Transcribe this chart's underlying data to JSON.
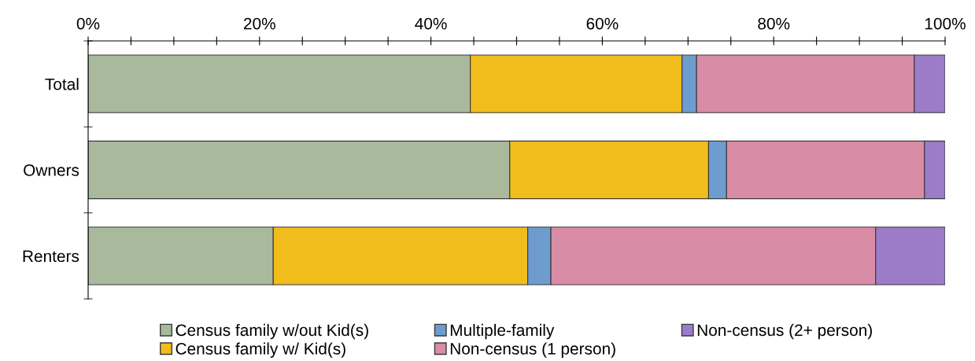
{
  "chart_data": {
    "type": "bar",
    "orientation": "horizontal",
    "stacked": true,
    "categories": [
      "Total",
      "Owners",
      "Renters"
    ],
    "series": [
      {
        "name": "Census family w/out Kid(s)",
        "color": "#a9b99b",
        "values": [
          44.6,
          49.2,
          21.6
        ]
      },
      {
        "name": "Census family w/ Kid(s)",
        "color": "#f0bd1c",
        "values": [
          24.7,
          23.2,
          29.7
        ]
      },
      {
        "name": "Multiple-family",
        "color": "#6f9ccf",
        "values": [
          1.7,
          2.1,
          2.7
        ]
      },
      {
        "name": "Non-census (1 person)",
        "color": "#d98ca6",
        "values": [
          25.4,
          23.1,
          37.9
        ]
      },
      {
        "name": "Non-census (2+ person)",
        "color": "#9c7bc9",
        "values": [
          3.6,
          2.4,
          8.1
        ]
      }
    ],
    "xlim": [
      0,
      100
    ],
    "xticks": [
      {
        "value": 0,
        "label": "0%"
      },
      {
        "value": 5,
        "label": null
      },
      {
        "value": 10,
        "label": null
      },
      {
        "value": 15,
        "label": null
      },
      {
        "value": 20,
        "label": "20%"
      },
      {
        "value": 25,
        "label": null
      },
      {
        "value": 30,
        "label": null
      },
      {
        "value": 35,
        "label": null
      },
      {
        "value": 40,
        "label": "40%"
      },
      {
        "value": 45,
        "label": null
      },
      {
        "value": 50,
        "label": null
      },
      {
        "value": 55,
        "label": null
      },
      {
        "value": 60,
        "label": "60%"
      },
      {
        "value": 65,
        "label": null
      },
      {
        "value": 70,
        "label": null
      },
      {
        "value": 75,
        "label": null
      },
      {
        "value": 80,
        "label": "80%"
      },
      {
        "value": 85,
        "label": null
      },
      {
        "value": 90,
        "label": null
      },
      {
        "value": 95,
        "label": null
      },
      {
        "value": 100,
        "label": "100%"
      }
    ],
    "grid": false,
    "legend": "bottom"
  }
}
